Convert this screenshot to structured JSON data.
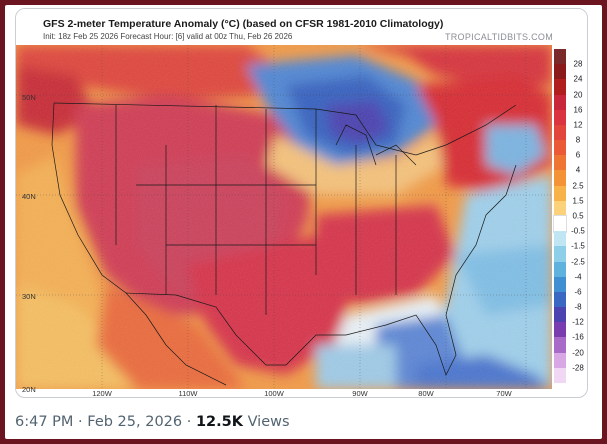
{
  "map": {
    "title": "GFS 2-meter Temperature Anomaly (°C) (based on CFSR 1981-2010 Climatology)",
    "subtitle": "Init: 18z Feb 25 2026   Forecast Hour: [6]   valid at 00z Thu, Feb 26 2026",
    "brand": "TROPICALTIDBITS.COM",
    "lat_labels": [
      "50N",
      "40N",
      "30N",
      "20N"
    ],
    "lon_labels": [
      "120W",
      "110W",
      "100W",
      "90W",
      "80W",
      "70W"
    ],
    "colorbar": {
      "labels": [
        "28",
        "24",
        "20",
        "16",
        "12",
        "8",
        "6",
        "4",
        "2.5",
        "1.5",
        "0.5",
        "-0.5",
        "-1.5",
        "-2.5",
        "-4",
        "-6",
        "-8",
        "-12",
        "-16",
        "-20",
        "-28"
      ],
      "colors": [
        "#7a2a2a",
        "#8b1a1a",
        "#b01e1e",
        "#c8263a",
        "#d9343f",
        "#e2453c",
        "#ea5a36",
        "#ef7533",
        "#f39237",
        "#f7b24a",
        "#fbd27a",
        "#ffffff",
        "#bfe6f2",
        "#8dcfe8",
        "#5fb2de",
        "#3f8fd2",
        "#3a67c2",
        "#4d43b0",
        "#7a3db0",
        "#a86cc8",
        "#d8a8e4",
        "#f0d8f4"
      ]
    }
  },
  "tweet_meta": {
    "time": "6:47 PM",
    "sep1": "·",
    "date": "Feb 25, 2026",
    "sep2": "·",
    "views_count": "12.5K",
    "views_label": "Views"
  }
}
